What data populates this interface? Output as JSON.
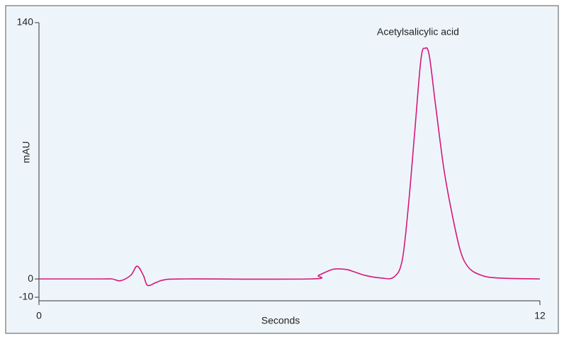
{
  "chart_data": {
    "type": "line",
    "x_label": "Seconds",
    "y_label": "mAU",
    "annotation": "Acetylsalicylic acid",
    "xlim": [
      0,
      12
    ],
    "xticks": [
      0,
      12
    ],
    "ylim": [
      -10,
      140
    ],
    "yticks": [
      -10,
      0,
      140
    ],
    "grid": false,
    "series": [
      {
        "color": "#d6177b",
        "x": [
          0,
          1.5,
          1.75,
          1.95,
          2.2,
          2.35,
          2.5,
          2.6,
          2.8,
          3.0,
          3.5,
          6.5,
          6.7,
          7.0,
          7.15,
          7.4,
          7.8,
          8.2,
          8.5,
          8.7,
          8.85,
          9.0,
          9.15,
          9.25,
          9.35,
          9.5,
          9.7,
          9.9,
          10.1,
          10.3,
          10.6,
          11,
          12
        ],
        "values": [
          0,
          0,
          0,
          -1,
          2,
          7,
          2,
          -3.5,
          -2,
          -0.5,
          0,
          0,
          2,
          5,
          5.5,
          5,
          2,
          0.5,
          1,
          10,
          40,
          80,
          120,
          126,
          122,
          95,
          60,
          35,
          15,
          6,
          2,
          0.5,
          0
        ]
      }
    ]
  }
}
